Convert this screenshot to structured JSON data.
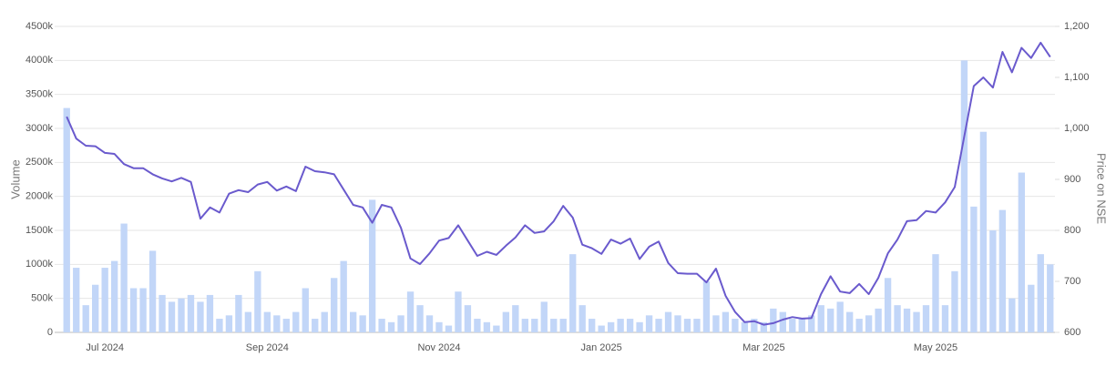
{
  "chart_data": {
    "type": "bar",
    "ylabel": "Volume",
    "y2label": "Price on NSE",
    "categories": [
      null,
      null,
      null,
      null,
      "Jul 2024",
      null,
      null,
      null,
      null,
      null,
      null,
      null,
      null,
      null,
      null,
      null,
      null,
      null,
      null,
      null,
      null,
      "Sep 2024",
      null,
      null,
      null,
      null,
      null,
      null,
      null,
      null,
      null,
      null,
      null,
      null,
      null,
      null,
      null,
      null,
      null,
      "Nov 2024",
      null,
      null,
      null,
      null,
      null,
      null,
      null,
      null,
      null,
      null,
      null,
      null,
      null,
      null,
      null,
      null,
      "Jan 2025",
      null,
      null,
      null,
      null,
      null,
      null,
      null,
      null,
      null,
      null,
      null,
      null,
      null,
      null,
      null,
      null,
      "Mar 2025",
      null,
      null,
      null,
      null,
      null,
      null,
      null,
      null,
      null,
      null,
      null,
      null,
      null,
      null,
      null,
      null,
      null,
      "May 2025",
      null,
      null,
      null,
      null,
      null,
      null,
      null,
      null,
      null,
      null,
      null,
      null
    ],
    "series": [
      {
        "color": "#c2d6f8",
        "values": [
          3300000,
          950000,
          400000,
          700000,
          950000,
          1050000,
          1600000,
          650000,
          650000,
          1200000,
          550000,
          450000,
          500000,
          550000,
          450000,
          550000,
          200000,
          250000,
          550000,
          300000,
          900000,
          300000,
          250000,
          200000,
          300000,
          650000,
          200000,
          300000,
          800000,
          1050000,
          300000,
          250000,
          1950000,
          200000,
          150000,
          250000,
          600000,
          400000,
          250000,
          150000,
          100000,
          600000,
          400000,
          200000,
          150000,
          100000,
          300000,
          400000,
          200000,
          200000,
          450000,
          200000,
          200000,
          1150000,
          400000,
          200000,
          100000,
          150000,
          200000,
          200000,
          150000,
          250000,
          200000,
          300000,
          250000,
          200000,
          200000,
          750000,
          250000,
          300000,
          200000,
          150000,
          200000,
          150000,
          350000,
          300000,
          200000,
          200000,
          250000,
          400000,
          350000,
          450000,
          300000,
          200000,
          250000,
          350000,
          800000,
          400000,
          350000,
          300000,
          400000,
          1150000,
          400000,
          900000,
          4000000,
          1850000,
          2950000,
          1500000,
          1800000,
          500000,
          2350000,
          700000,
          1150000,
          1000000
        ]
      },
      {
        "color": "#6a5acd",
        "type": "line",
        "axis": "y2",
        "values": [
          1023,
          980,
          966,
          965,
          952,
          950,
          930,
          922,
          922,
          910,
          902,
          896,
          903,
          895,
          823,
          845,
          835,
          872,
          879,
          875,
          890,
          895,
          878,
          886,
          877,
          925,
          916,
          914,
          910,
          880,
          850,
          845,
          815,
          850,
          845,
          805,
          745,
          734,
          755,
          780,
          785,
          810,
          780,
          750,
          758,
          752,
          770,
          786,
          810,
          795,
          798,
          818,
          848,
          825,
          772,
          765,
          754,
          782,
          774,
          784,
          744,
          768,
          778,
          736,
          716,
          715,
          715,
          698,
          725,
          672,
          640,
          620,
          622,
          615,
          618,
          625,
          630,
          627,
          628,
          675,
          710,
          680,
          677,
          695,
          675,
          707,
          755,
          782,
          818,
          820,
          838,
          835,
          855,
          885,
          984,
          1083,
          1100,
          1080,
          1150,
          1110,
          1158,
          1138,
          1168,
          1140
        ]
      }
    ],
    "ylim": [
      0,
      4500000
    ],
    "yticks": [
      0,
      {
        "value": 500000,
        "label": "500k"
      },
      {
        "value": 1000000,
        "label": "1000k"
      },
      {
        "value": 1500000,
        "label": "1500k"
      },
      {
        "value": 2000000,
        "label": "2000k"
      },
      {
        "value": 2500000,
        "label": "2500k"
      },
      {
        "value": 3000000,
        "label": "3000k"
      },
      {
        "value": 3500000,
        "label": "3500k"
      },
      {
        "value": 4000000,
        "label": "4000k"
      },
      {
        "value": 4500000,
        "label": "4500k"
      }
    ],
    "y2lim": [
      600,
      1200
    ],
    "y2ticks": [
      600,
      700,
      800,
      900,
      {
        "value": 1000,
        "label": "1,000"
      },
      {
        "value": 1100,
        "label": "1,100"
      },
      {
        "value": 1200,
        "label": "1,200"
      }
    ],
    "grid": true
  }
}
